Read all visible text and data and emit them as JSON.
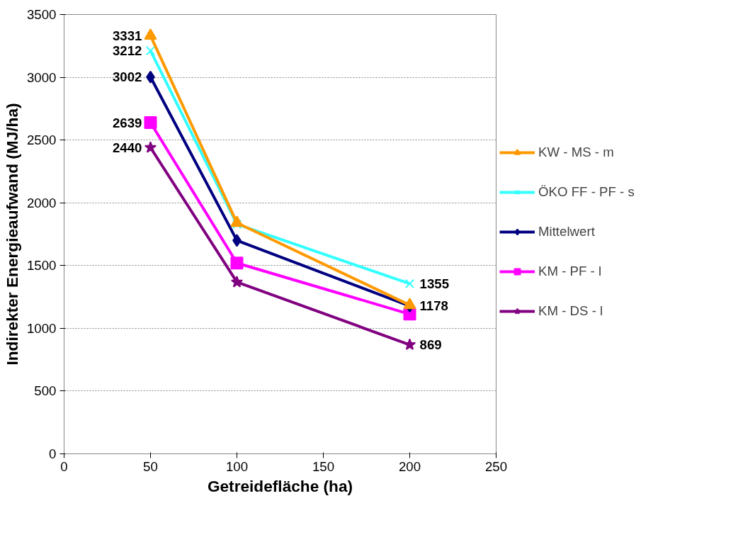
{
  "chart_data": {
    "type": "line",
    "xlabel": "Getreidefläche (ha)",
    "ylabel": "Indirekter Energieaufwand (MJ/ha)",
    "x": [
      50,
      100,
      200
    ],
    "xlim": [
      0,
      250
    ],
    "xticks": [
      0,
      50,
      100,
      150,
      200,
      250
    ],
    "ylim": [
      0,
      3500
    ],
    "yticks": [
      0,
      500,
      1000,
      1500,
      2000,
      2500,
      3000,
      3500
    ],
    "grid": "y",
    "legend": "right",
    "series": [
      {
        "name": "KW - MS - m",
        "color": "#ff9900",
        "marker": "triangle",
        "values": [
          3331,
          1840,
          1185
        ],
        "value_labels": [
          "3331",
          null,
          null
        ]
      },
      {
        "name": "ÖKO FF - PF - s",
        "color": "#33ffff",
        "marker": "cross",
        "values": [
          3212,
          1830,
          1355
        ],
        "value_labels": [
          "3212",
          null,
          "1355"
        ]
      },
      {
        "name": "Mittelwert",
        "color": "#000080",
        "marker": "diamond",
        "values": [
          3002,
          1700,
          1178
        ],
        "value_labels": [
          "3002",
          null,
          "1178"
        ]
      },
      {
        "name": "KM - PF - l",
        "color": "#ff00ff",
        "marker": "square",
        "values": [
          2639,
          1520,
          1113
        ],
        "value_labels": [
          "2639",
          null,
          null
        ]
      },
      {
        "name": "KM - DS - l",
        "color": "#800080",
        "marker": "star",
        "values": [
          2440,
          1368,
          869
        ],
        "value_labels": [
          "2440",
          null,
          "869"
        ]
      }
    ]
  }
}
